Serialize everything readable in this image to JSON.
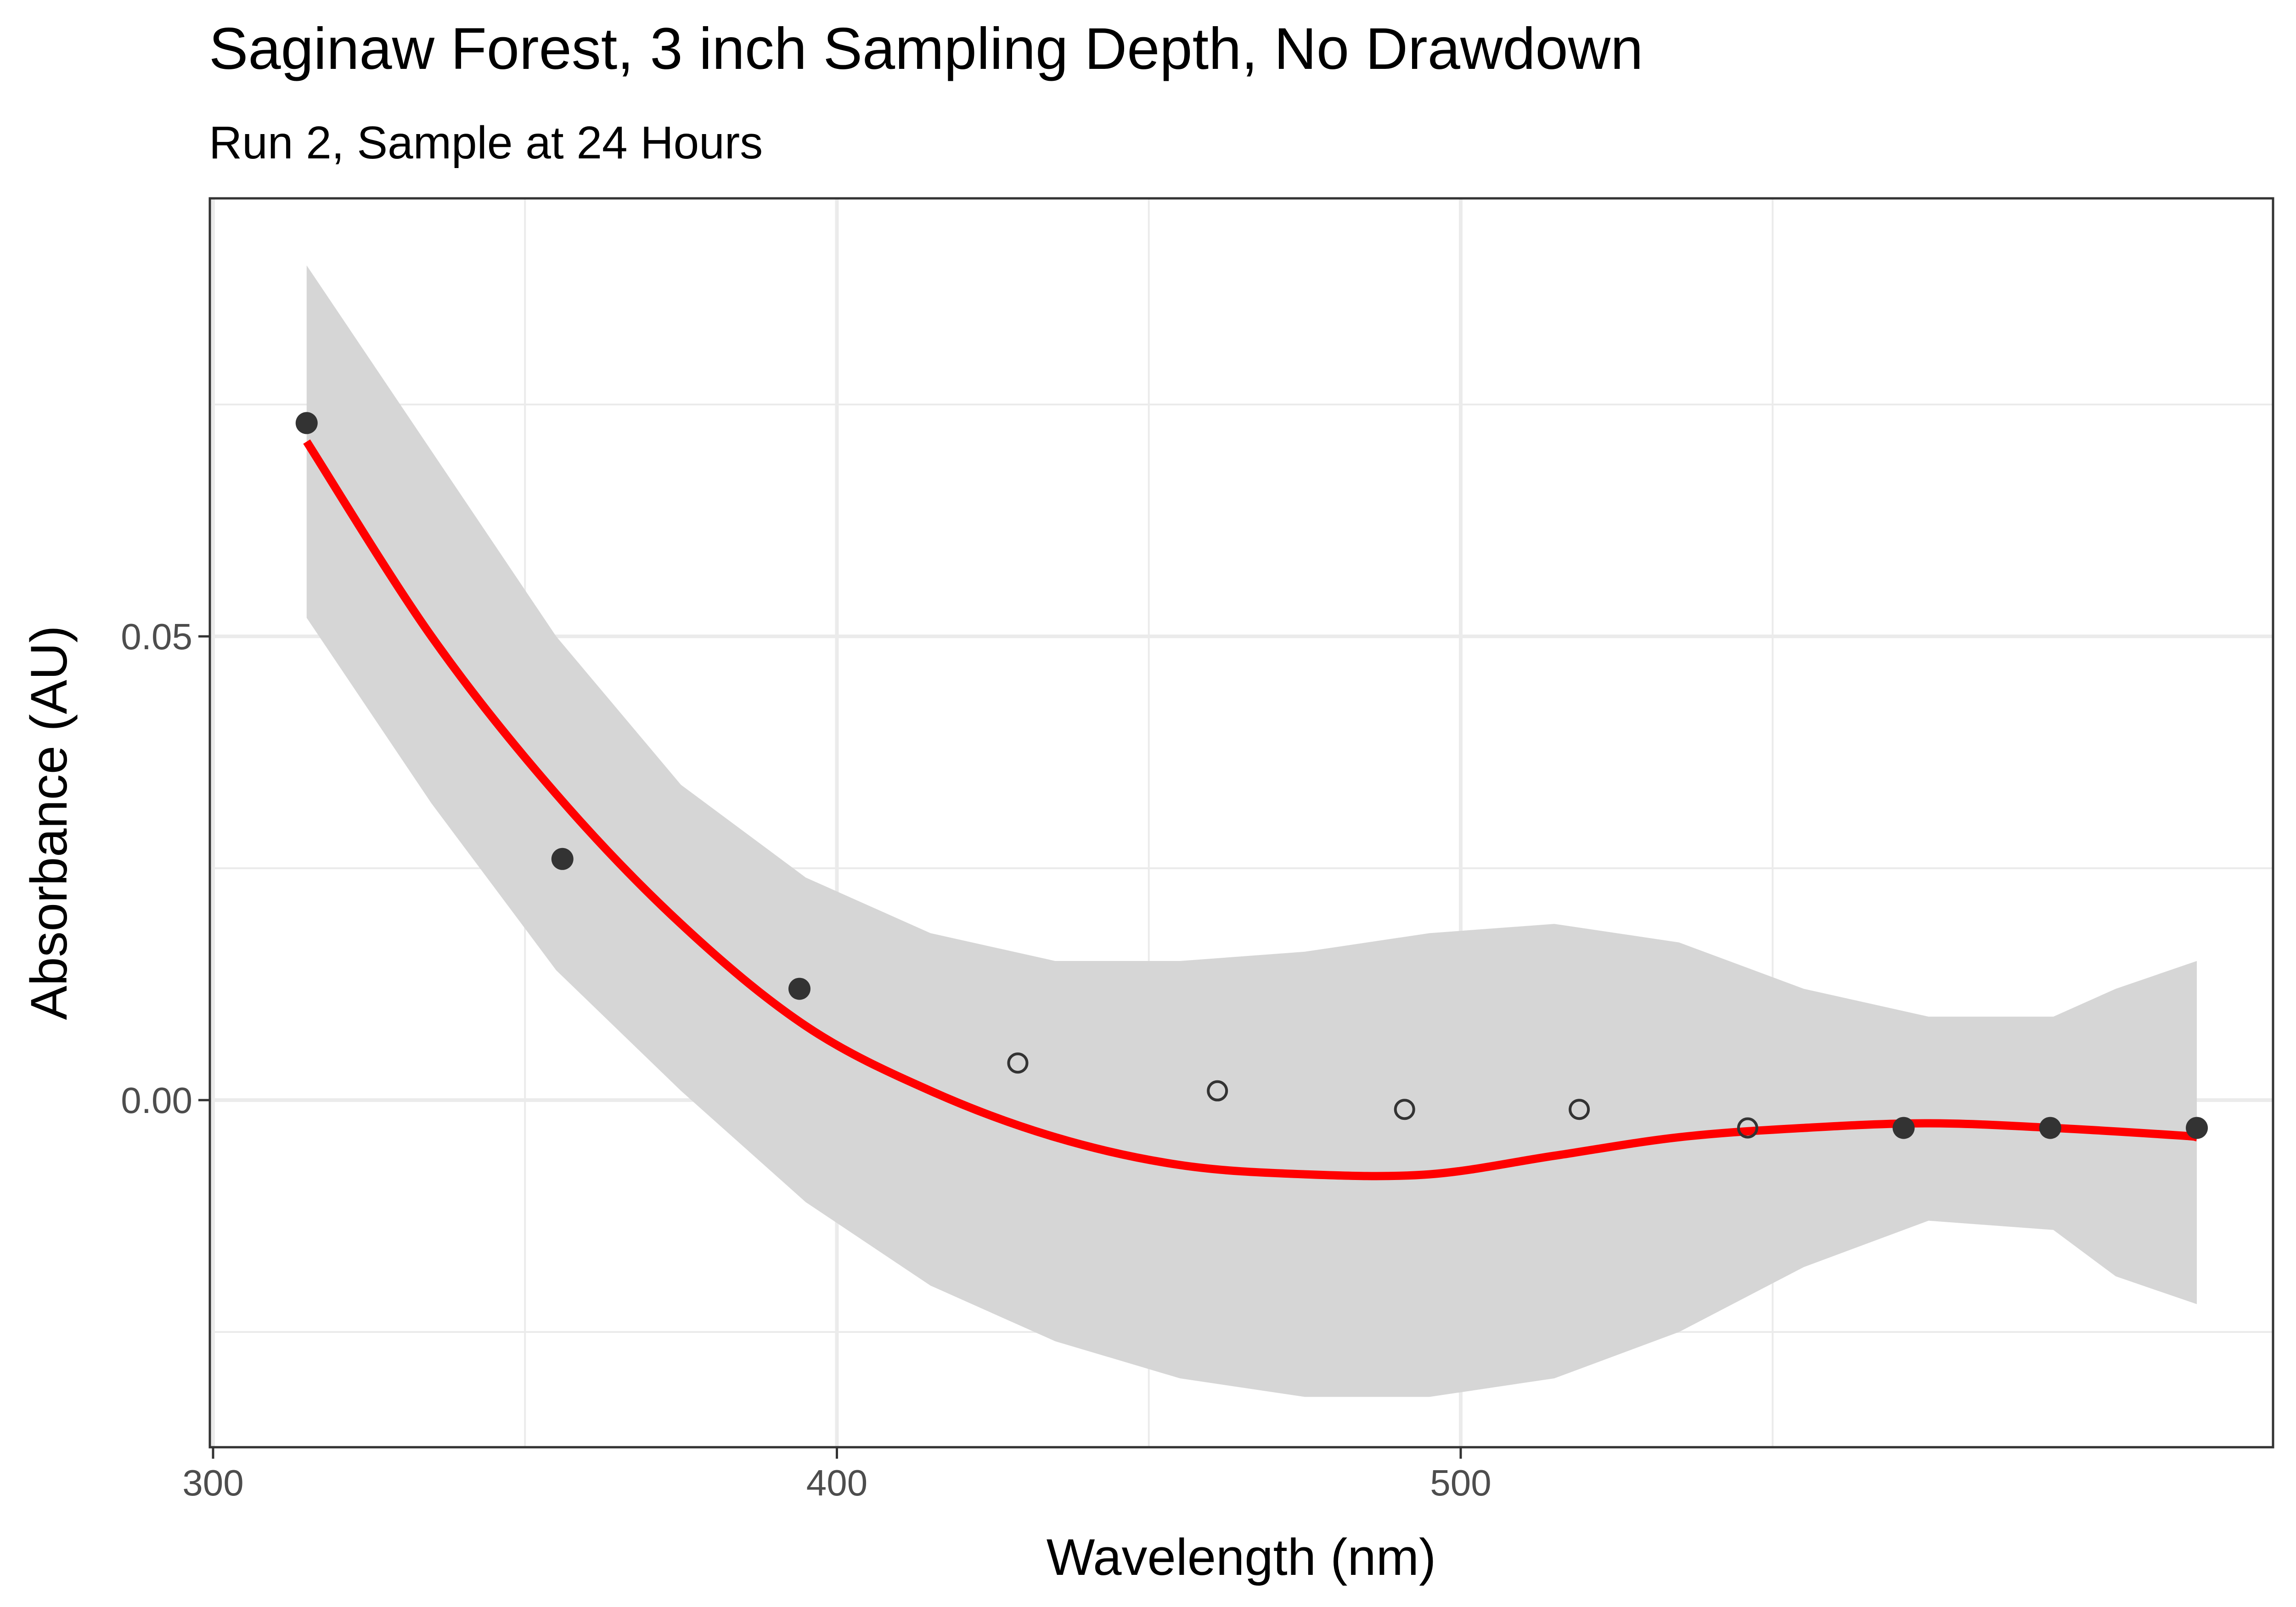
{
  "chart_data": {
    "type": "scatter",
    "title": "Saginaw Forest, 3 inch Sampling Depth, No Drawdown",
    "subtitle": "Run 2, Sample at 24 Hours",
    "xlabel": "Wavelength (nm)",
    "ylabel": "Absorbance (AU)",
    "xlim": [
      300,
      590
    ],
    "ylim": [
      -0.038,
      0.095
    ],
    "x_ticks": [
      300,
      400,
      500
    ],
    "x_tick_labels": [
      "300",
      "400",
      "500"
    ],
    "y_ticks": [
      0.0,
      0.05
    ],
    "y_tick_labels": [
      "0.00",
      "0.05"
    ],
    "x_minor": [
      350,
      450,
      550
    ],
    "y_minor": [
      -0.025,
      0.025,
      0.075
    ],
    "grid": true,
    "points": [
      {
        "x": 315,
        "y": 0.073,
        "filled": true
      },
      {
        "x": 356,
        "y": 0.026,
        "filled": true
      },
      {
        "x": 394,
        "y": 0.012,
        "filled": true
      },
      {
        "x": 429,
        "y": 0.004,
        "filled": false
      },
      {
        "x": 461,
        "y": 0.001,
        "filled": false
      },
      {
        "x": 491,
        "y": -0.001,
        "filled": false
      },
      {
        "x": 519,
        "y": -0.001,
        "filled": false
      },
      {
        "x": 546,
        "y": -0.003,
        "filled": false
      },
      {
        "x": 571,
        "y": -0.003,
        "filled": true
      },
      {
        "x": 594.5,
        "y": -0.003,
        "filled": true
      },
      {
        "x": 618,
        "y": -0.003,
        "filled": true
      }
    ],
    "fit_line": {
      "x": [
        315,
        335,
        355,
        375,
        395,
        415,
        435,
        455,
        475,
        495,
        515,
        535,
        555,
        575,
        595,
        615,
        618
      ],
      "y": [
        0.071,
        0.05,
        0.033,
        0.019,
        0.008,
        0.001,
        -0.004,
        -0.007,
        -0.008,
        -0.008,
        -0.006,
        -0.004,
        -0.003,
        -0.0025,
        -0.003,
        -0.0038,
        -0.004
      ]
    },
    "ci_band": {
      "x": [
        315,
        335,
        355,
        375,
        395,
        415,
        435,
        455,
        475,
        495,
        515,
        535,
        555,
        575,
        595,
        605,
        618
      ],
      "upper": [
        0.09,
        0.07,
        0.05,
        0.034,
        0.024,
        0.018,
        0.015,
        0.015,
        0.016,
        0.018,
        0.019,
        0.017,
        0.012,
        0.009,
        0.009,
        0.012,
        0.015
      ],
      "lower": [
        0.052,
        0.032,
        0.014,
        0.001,
        -0.011,
        -0.02,
        -0.026,
        -0.03,
        -0.032,
        -0.032,
        -0.03,
        -0.025,
        -0.018,
        -0.013,
        -0.014,
        -0.019,
        -0.022
      ]
    },
    "colors": {
      "fit_line": "#ff0000",
      "ci_band": "#d6d6d6",
      "point": "#333333",
      "panel_border": "#333333",
      "grid": "#ebebeb"
    }
  }
}
